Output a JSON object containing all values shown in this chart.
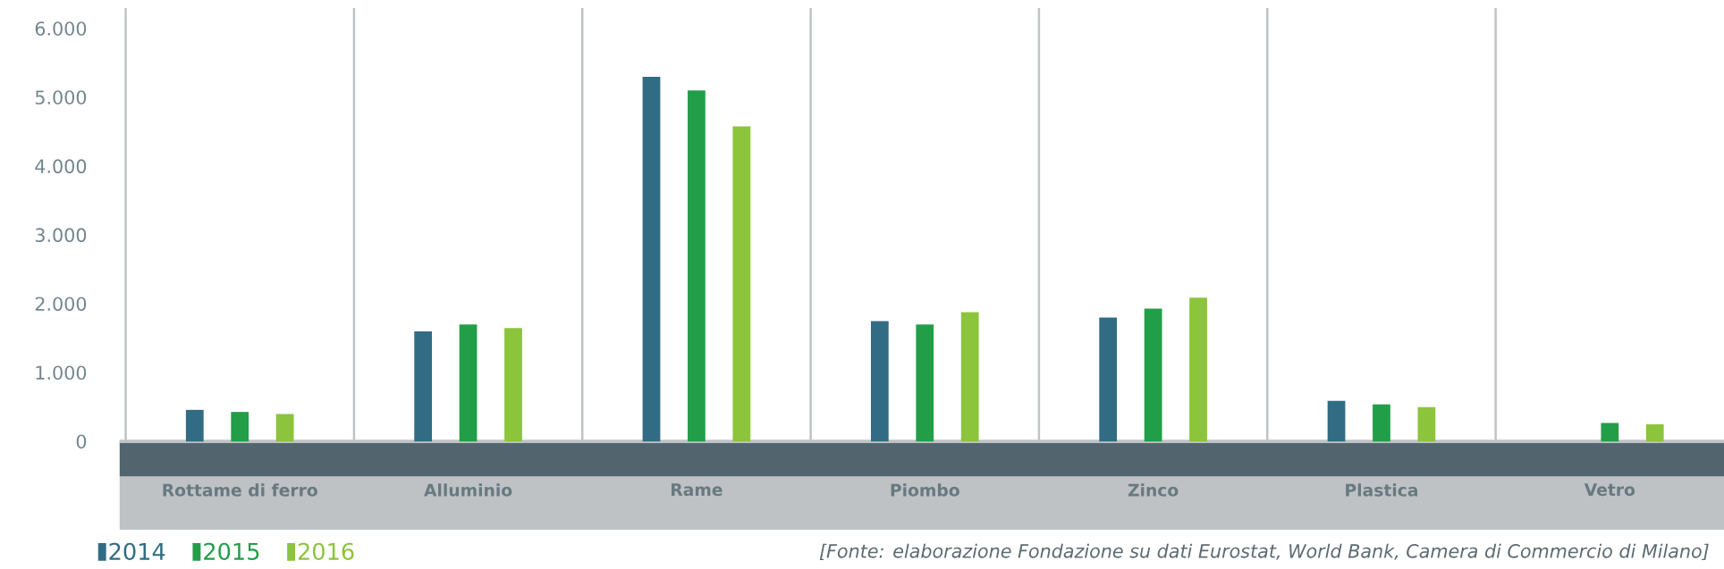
{
  "chart_data": {
    "type": "bar",
    "categories": [
      "Rottame di ferro",
      "Alluminio",
      "Rame",
      "Piombo",
      "Zinco",
      "Plastica",
      "Vetro"
    ],
    "series": [
      {
        "name": "2014",
        "color": "#316c84",
        "values": [
          460,
          1600,
          5300,
          1750,
          1800,
          590,
          null
        ]
      },
      {
        "name": "2015",
        "color": "#239e48",
        "values": [
          430,
          1700,
          5100,
          1700,
          1930,
          540,
          270
        ]
      },
      {
        "name": "2016",
        "color": "#8cc43c",
        "values": [
          400,
          1650,
          4580,
          1880,
          2090,
          500,
          250
        ]
      }
    ],
    "ylim": [
      0,
      6300
    ],
    "yticks": [
      {
        "value": 0,
        "label": "0"
      },
      {
        "value": 1000,
        "label": "1.000"
      },
      {
        "value": 2000,
        "label": "2.000"
      },
      {
        "value": 3000,
        "label": "3.000"
      },
      {
        "value": 4000,
        "label": "4.000"
      },
      {
        "value": 5000,
        "label": "5.000"
      },
      {
        "value": 6000,
        "label": "6.000"
      }
    ],
    "legend": "bottom left",
    "annotations": [
      "[Fonte: elaborazione Fondazione su dati Eurostat, World Bank, Camera di Commercio di Milano]"
    ]
  }
}
